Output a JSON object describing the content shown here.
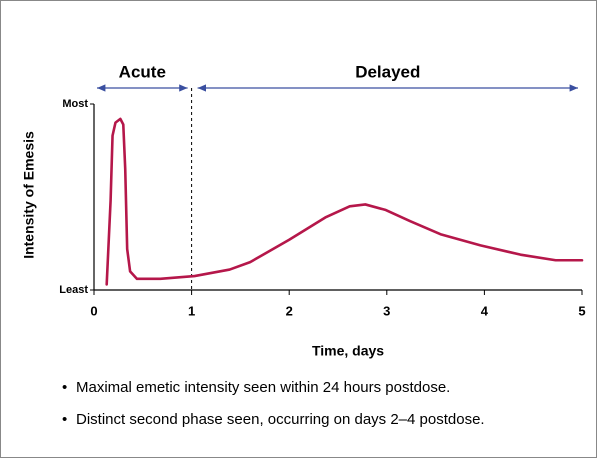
{
  "chart_data": {
    "type": "line",
    "phases": [
      "Acute",
      "Delayed"
    ],
    "xlabel": "Time, days",
    "ylabel": "Intensity of Emesis",
    "x": [
      0.13,
      0.17,
      0.19,
      0.22,
      0.27,
      0.3,
      0.32,
      0.34,
      0.37,
      0.44,
      0.68,
      1.03,
      1.39,
      1.6,
      2.0,
      2.37,
      2.62,
      2.78,
      2.99,
      3.24,
      3.55,
      3.96,
      4.37,
      4.73,
      5.0
    ],
    "series": [
      {
        "color": "#b5174a",
        "values": [
          0.03,
          0.48,
          0.83,
          0.9,
          0.92,
          0.89,
          0.65,
          0.22,
          0.1,
          0.06,
          0.06,
          0.075,
          0.11,
          0.15,
          0.27,
          0.39,
          0.45,
          0.46,
          0.43,
          0.37,
          0.3,
          0.24,
          0.19,
          0.16,
          0.16
        ]
      }
    ],
    "xlim": [
      0,
      5
    ],
    "xticks": [
      0,
      1,
      2,
      3,
      4,
      5
    ],
    "ylim": [
      0,
      1
    ],
    "yticks": [
      {
        "value": 0,
        "label": "Least"
      },
      {
        "value": 1,
        "label": "Most"
      }
    ],
    "notes": [
      "Maximal emetic intensity seen within 24 hours postdose.",
      "Distinct second phase seen, occurring on days 2–4 postdose."
    ]
  }
}
